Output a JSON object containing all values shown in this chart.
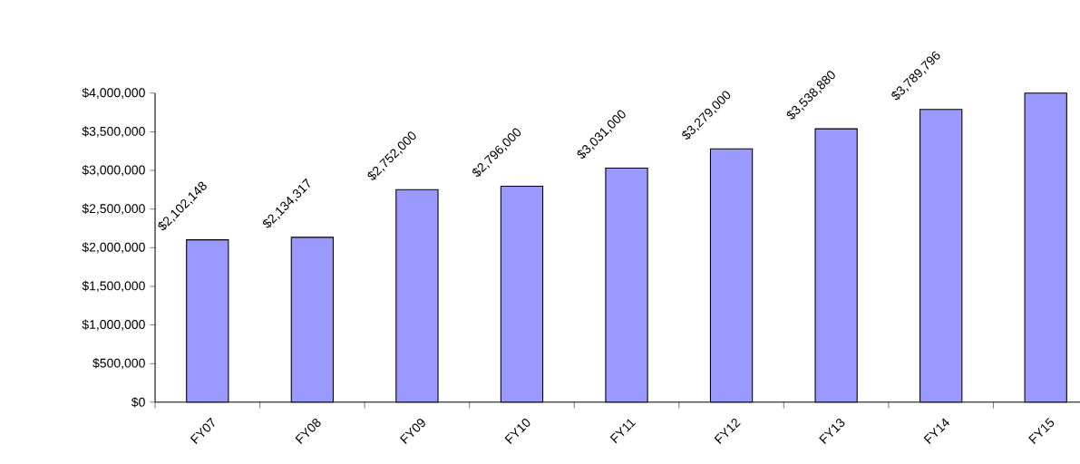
{
  "chart_data": {
    "type": "bar",
    "categories": [
      "FY07",
      "FY08",
      "FY09",
      "FY10",
      "FY11",
      "FY12",
      "FY13",
      "FY14",
      "FY15"
    ],
    "values": [
      2102148,
      2134317,
      2752000,
      2796000,
      3031000,
      3279000,
      3538880,
      3789796,
      4000000
    ],
    "value_labels": [
      "$2,102,148",
      "$2,134,317",
      "$2,752,000",
      "$2,796,000",
      "$3,031,000",
      "$3,279,000",
      "$3,538,880",
      "$3,789,796",
      null
    ],
    "color": "#9999ff",
    "ylim": [
      0,
      4000000
    ],
    "yticks": [
      {
        "value": 0,
        "label": "$0"
      },
      {
        "value": 500000,
        "label": "$500,000"
      },
      {
        "value": 1000000,
        "label": "$1,000,000"
      },
      {
        "value": 1500000,
        "label": "$1,500,000"
      },
      {
        "value": 2000000,
        "label": "$2,000,000"
      },
      {
        "value": 2500000,
        "label": "$2,500,000"
      },
      {
        "value": 3000000,
        "label": "$3,000,000"
      },
      {
        "value": 3500000,
        "label": "$3,500,000"
      },
      {
        "value": 4000000,
        "label": "$4,000,000"
      }
    ]
  }
}
